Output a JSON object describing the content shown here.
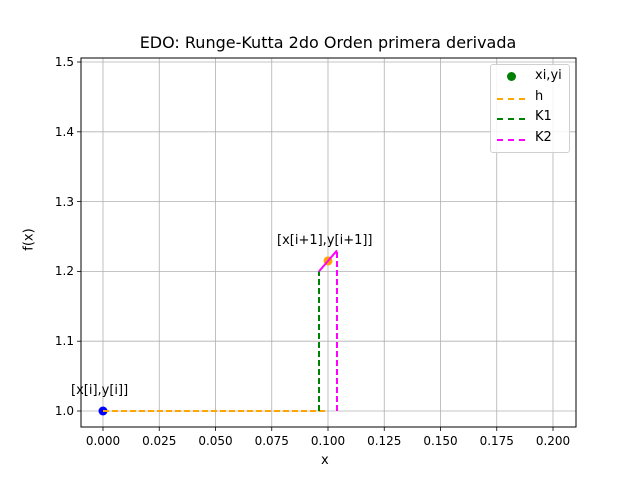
{
  "chart_data": {
    "type": "line",
    "title": "EDO: Runge-Kutta 2do Orden primera derivada",
    "xlabel": "x",
    "ylabel": "f(x)",
    "xlim": [
      -0.01,
      0.21
    ],
    "ylim": [
      0.977,
      1.505
    ],
    "grid": true,
    "legend_position": "upper right",
    "x_ticks": [
      "0.000",
      "0.025",
      "0.050",
      "0.075",
      "0.100",
      "0.125",
      "0.150",
      "0.175",
      "0.200"
    ],
    "y_ticks": [
      "1.0",
      "1.1",
      "1.2",
      "1.3",
      "1.4",
      "1.5"
    ],
    "series": [
      {
        "name": "xi,yi",
        "style": "points",
        "color": "#008000",
        "points": [
          {
            "x": 0.0,
            "y": 1.0,
            "color": "#0000ff"
          },
          {
            "x": 0.1,
            "y": 1.215,
            "color": "#ffa500"
          }
        ]
      },
      {
        "name": "h",
        "style": "dashed",
        "color": "#ffa500",
        "x": [
          0.0,
          0.1
        ],
        "y": [
          1.0,
          1.0
        ]
      },
      {
        "name": "K1",
        "style": "dashed",
        "color": "#008000",
        "x": [
          0.096,
          0.096
        ],
        "y": [
          1.0,
          1.2
        ]
      },
      {
        "name": "K2",
        "style": "dashed",
        "color": "#ff00ff",
        "x": [
          0.104,
          0.104
        ],
        "y": [
          1.0,
          1.23
        ]
      },
      {
        "name": "K2 slope",
        "style": "solid",
        "color": "#ff00ff",
        "x": [
          0.096,
          0.104
        ],
        "y": [
          1.2,
          1.23
        ]
      }
    ],
    "annotations": [
      {
        "text": "[x[i],y[i]]",
        "x": 0.0,
        "y": 1.0
      },
      {
        "text": "[x[i+1],y[i+1]]",
        "x": 0.1,
        "y": 1.215
      }
    ]
  },
  "legend": {
    "items": [
      {
        "label": "xi,yi",
        "color": "#008000",
        "kind": "marker"
      },
      {
        "label": "h",
        "color": "#ffa500",
        "kind": "dashed"
      },
      {
        "label": "K1",
        "color": "#008000",
        "kind": "dashed"
      },
      {
        "label": "K2",
        "color": "#ff00ff",
        "kind": "dashed"
      }
    ]
  }
}
